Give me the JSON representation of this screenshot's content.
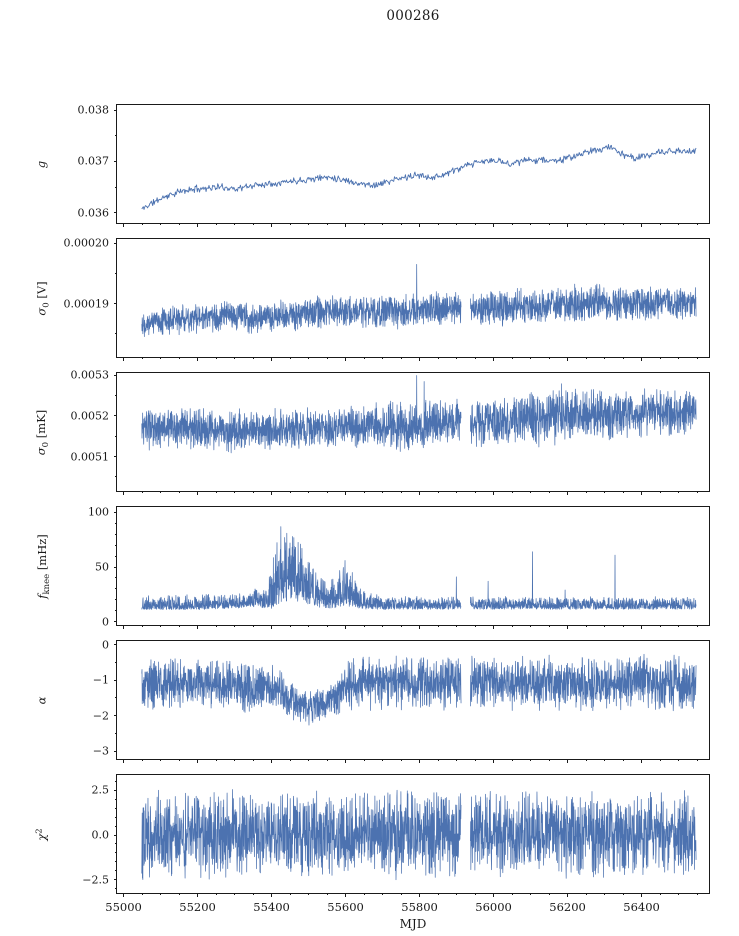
{
  "title": "000286",
  "xlabel": "MJD",
  "colors": {
    "line": "#4c72b0",
    "axis": "#1a1a1a",
    "background": "#ffffff"
  },
  "chart_data": {
    "type": "line",
    "title": "000286",
    "xlabel": "MJD",
    "legend": "none",
    "grid": false,
    "xlim": [
      54985,
      56585
    ],
    "x_range": [
      55052,
      56550
    ],
    "x_ticks": [
      {
        "v": 55000,
        "t": "55000"
      },
      {
        "v": 55200,
        "t": "55200"
      },
      {
        "v": 55400,
        "t": "55400"
      },
      {
        "v": 55600,
        "t": "55600"
      },
      {
        "v": 55800,
        "t": "55800"
      },
      {
        "v": 56000,
        "t": "56000"
      },
      {
        "v": 56200,
        "t": "56200"
      },
      {
        "v": 56400,
        "t": "56400"
      }
    ],
    "x_minor_step": 50,
    "gap_x": [
      55915,
      55940
    ],
    "panels": [
      {
        "name": "g",
        "label": {
          "main": "g",
          "sub": "",
          "sup": "",
          "unit": ""
        },
        "ylim": [
          0.03578,
          0.03808
        ],
        "yticks": [
          {
            "v": 0.036,
            "t": "0.036"
          },
          {
            "v": 0.037,
            "t": "0.037"
          },
          {
            "v": 0.038,
            "t": "0.038"
          }
        ],
        "y_minor_step": 0.0005,
        "seed": 11,
        "n": 760,
        "lw": 0.9,
        "gap": false,
        "skew": "none",
        "base": [
          [
            55052,
            0.03605
          ],
          [
            55075,
            0.03615
          ],
          [
            55110,
            0.03628
          ],
          [
            55150,
            0.03638
          ],
          [
            55200,
            0.03645
          ],
          [
            55260,
            0.03648
          ],
          [
            55310,
            0.03645
          ],
          [
            55360,
            0.03652
          ],
          [
            55410,
            0.03656
          ],
          [
            55460,
            0.0366
          ],
          [
            55510,
            0.03664
          ],
          [
            55560,
            0.03668
          ],
          [
            55600,
            0.03662
          ],
          [
            55645,
            0.03654
          ],
          [
            55685,
            0.03652
          ],
          [
            55725,
            0.0366
          ],
          [
            55770,
            0.03668
          ],
          [
            55805,
            0.03671
          ],
          [
            55845,
            0.03667
          ],
          [
            55885,
            0.03677
          ],
          [
            55925,
            0.03688
          ],
          [
            55965,
            0.03697
          ],
          [
            56005,
            0.037
          ],
          [
            56045,
            0.03694
          ],
          [
            56085,
            0.03699
          ],
          [
            56125,
            0.03702
          ],
          [
            56165,
            0.03699
          ],
          [
            56205,
            0.03704
          ],
          [
            56245,
            0.03714
          ],
          [
            56285,
            0.03721
          ],
          [
            56320,
            0.03727
          ],
          [
            56345,
            0.03714
          ],
          [
            56385,
            0.03704
          ],
          [
            56425,
            0.03711
          ],
          [
            56465,
            0.03717
          ],
          [
            56550,
            0.03718
          ]
        ],
        "noise": [
          [
            55052,
            8e-05
          ],
          [
            56550,
            8e-05
          ]
        ],
        "spikes": []
      },
      {
        "name": "sigma0-V",
        "label": {
          "main": "σ",
          "sub": "0",
          "sup": "",
          "unit": " [V]"
        },
        "ylim": [
          0.000181,
          0.0002005
        ],
        "yticks": [
          {
            "v": 0.00019,
            "t": "0.00019"
          },
          {
            "v": 0.0002,
            "t": "0.00020"
          }
        ],
        "y_minor_step": 5e-06,
        "seed": 22,
        "n": 2600,
        "lw": 0.75,
        "gap": true,
        "skew": "none",
        "base": [
          [
            55052,
            0.0001868
          ],
          [
            55150,
            0.0001872
          ],
          [
            55250,
            0.0001876
          ],
          [
            55320,
            0.0001878
          ],
          [
            55365,
            0.0001874
          ],
          [
            55420,
            0.0001878
          ],
          [
            55500,
            0.0001882
          ],
          [
            55560,
            0.0001884
          ],
          [
            55620,
            0.0001886
          ],
          [
            55700,
            0.0001885
          ],
          [
            55760,
            0.0001886
          ],
          [
            55805,
            0.0001888
          ],
          [
            55860,
            0.000189
          ],
          [
            55920,
            0.0001891
          ],
          [
            55980,
            0.0001892
          ],
          [
            56040,
            0.0001892
          ],
          [
            56100,
            0.0001893
          ],
          [
            56160,
            0.0001896
          ],
          [
            56220,
            0.0001898
          ],
          [
            56280,
            0.00019
          ],
          [
            56340,
            0.0001898
          ],
          [
            56400,
            0.0001898
          ],
          [
            56460,
            0.0001899
          ],
          [
            56550,
            0.00019
          ]
        ],
        "noise": [
          [
            55052,
            2.6e-06
          ],
          [
            55400,
            2.8e-06
          ],
          [
            55800,
            3.1e-06
          ],
          [
            56200,
            3.3e-06
          ],
          [
            56550,
            3e-06
          ]
        ],
        "spikes": [
          [
            55795,
            0.0001963
          ]
        ]
      },
      {
        "name": "sigma0-mK",
        "label": {
          "main": "σ",
          "sub": "0",
          "sup": "",
          "unit": " [mK]"
        },
        "ylim": [
          0.005013,
          0.005303
        ],
        "yticks": [
          {
            "v": 0.0051,
            "t": "0.0051"
          },
          {
            "v": 0.0052,
            "t": "0.0052"
          },
          {
            "v": 0.0053,
            "t": "0.0053"
          }
        ],
        "y_minor_step": 5e-05,
        "seed": 33,
        "n": 2600,
        "lw": 0.75,
        "gap": true,
        "skew": "none",
        "base": [
          [
            55052,
            0.005163
          ],
          [
            55120,
            0.005169
          ],
          [
            55200,
            0.005164
          ],
          [
            55280,
            0.00516
          ],
          [
            55360,
            0.005162
          ],
          [
            55440,
            0.005165
          ],
          [
            55520,
            0.005168
          ],
          [
            55600,
            0.00517
          ],
          [
            55660,
            0.005172
          ],
          [
            55720,
            0.00517
          ],
          [
            55780,
            0.005174
          ],
          [
            55840,
            0.005177
          ],
          [
            55900,
            0.00518
          ],
          [
            55960,
            0.005184
          ],
          [
            56020,
            0.005185
          ],
          [
            56080,
            0.00519
          ],
          [
            56140,
            0.005196
          ],
          [
            56200,
            0.005204
          ],
          [
            56260,
            0.0052
          ],
          [
            56320,
            0.005196
          ],
          [
            56380,
            0.0052
          ],
          [
            56440,
            0.005204
          ],
          [
            56550,
            0.005205
          ]
        ],
        "noise": [
          [
            55052,
            5.5e-05
          ],
          [
            55600,
            5.5e-05
          ],
          [
            55780,
            7.2e-05
          ],
          [
            55860,
            6e-05
          ],
          [
            56080,
            7e-05
          ],
          [
            56200,
            8e-05
          ],
          [
            56320,
            6.5e-05
          ],
          [
            56550,
            6.5e-05
          ]
        ],
        "spikes": [
          [
            55795,
            0.005297
          ],
          [
            55815,
            0.005282
          ]
        ]
      },
      {
        "name": "f-knee",
        "label": {
          "main": "f",
          "sub": "knee",
          "sup": "",
          "unit": " [mHz]"
        },
        "ylim": [
          -4,
          104
        ],
        "yticks": [
          {
            "v": 0,
            "t": "0"
          },
          {
            "v": 50,
            "t": "50"
          },
          {
            "v": 100,
            "t": "100"
          }
        ],
        "y_minor_step": 10,
        "seed": 44,
        "n": 2600,
        "lw": 0.75,
        "gap": true,
        "skew": "pos",
        "base": [
          [
            55052,
            12
          ],
          [
            55200,
            12
          ],
          [
            55300,
            13
          ],
          [
            55345,
            15
          ],
          [
            55385,
            14
          ],
          [
            55405,
            17
          ],
          [
            55425,
            24
          ],
          [
            55435,
            27
          ],
          [
            55455,
            28
          ],
          [
            55475,
            26
          ],
          [
            55495,
            24
          ],
          [
            55515,
            20
          ],
          [
            55535,
            16
          ],
          [
            55560,
            14
          ],
          [
            55585,
            18
          ],
          [
            55605,
            20
          ],
          [
            55625,
            16
          ],
          [
            55655,
            13
          ],
          [
            55700,
            12
          ],
          [
            55800,
            12
          ],
          [
            56000,
            12
          ],
          [
            56200,
            12
          ],
          [
            56550,
            12
          ]
        ],
        "noise": [
          [
            55052,
            6
          ],
          [
            55340,
            7
          ],
          [
            55390,
            10
          ],
          [
            55418,
            30
          ],
          [
            55448,
            32
          ],
          [
            55498,
            26
          ],
          [
            55528,
            16
          ],
          [
            55558,
            12
          ],
          [
            55588,
            18
          ],
          [
            55618,
            18
          ],
          [
            55648,
            9
          ],
          [
            55695,
            6
          ],
          [
            55760,
            5.5
          ],
          [
            56550,
            5.5
          ]
        ],
        "spikes": [
          [
            55428,
            86
          ],
          [
            55444,
            80
          ],
          [
            55463,
            76
          ],
          [
            55481,
            70
          ],
          [
            55601,
            55
          ],
          [
            55902,
            40
          ],
          [
            55988,
            36
          ],
          [
            56108,
            63
          ],
          [
            56196,
            28
          ],
          [
            56331,
            60
          ]
        ]
      },
      {
        "name": "alpha",
        "label": {
          "main": "α",
          "sub": "",
          "sup": "",
          "unit": ""
        },
        "ylim": [
          -3.25,
          0.08
        ],
        "yticks": [
          {
            "v": 0,
            "t": "0"
          },
          {
            "v": -1,
            "t": "−1"
          },
          {
            "v": -2,
            "t": "−2"
          },
          {
            "v": -3,
            "t": "−3"
          }
        ],
        "y_minor_step": 0.5,
        "seed": 55,
        "n": 2600,
        "lw": 0.75,
        "gap": true,
        "skew": "none",
        "base": [
          [
            55052,
            -1.1
          ],
          [
            55200,
            -1.1
          ],
          [
            55300,
            -1.15
          ],
          [
            55345,
            -1.27
          ],
          [
            55385,
            -1.15
          ],
          [
            55420,
            -1.3
          ],
          [
            55450,
            -1.55
          ],
          [
            55480,
            -1.75
          ],
          [
            55515,
            -1.8
          ],
          [
            55545,
            -1.75
          ],
          [
            55575,
            -1.45
          ],
          [
            55605,
            -1.2
          ],
          [
            55655,
            -1.1
          ],
          [
            55800,
            -1.1
          ],
          [
            56000,
            -1.1
          ],
          [
            56550,
            -1.1
          ]
        ],
        "noise": [
          [
            55052,
            0.82
          ],
          [
            55400,
            0.72
          ],
          [
            55480,
            0.58
          ],
          [
            55560,
            0.62
          ],
          [
            55620,
            0.82
          ],
          [
            56550,
            0.82
          ]
        ],
        "spikes": []
      },
      {
        "name": "chi2",
        "label": {
          "main": "χ",
          "sub": "",
          "sup": "2",
          "unit": ""
        },
        "ylim": [
          -3.3,
          3.3
        ],
        "yticks": [
          {
            "v": 2.5,
            "t": "2.5"
          },
          {
            "v": 0,
            "t": "0.0"
          },
          {
            "v": -2.5,
            "t": "−2.5"
          }
        ],
        "y_minor_step": 0.5,
        "seed": 66,
        "n": 2600,
        "lw": 0.75,
        "gap": true,
        "skew": "none",
        "base": [
          [
            55052,
            0
          ],
          [
            56550,
            0
          ]
        ],
        "noise": [
          [
            55052,
            2.6
          ],
          [
            56550,
            2.6
          ]
        ],
        "spikes": []
      }
    ]
  }
}
